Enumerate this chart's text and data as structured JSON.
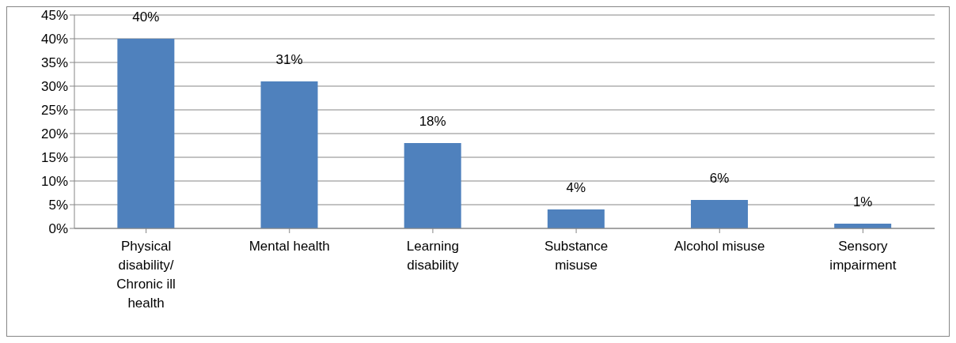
{
  "chart_data": {
    "type": "bar",
    "categories": [
      "Physical disability/ Chronic ill health",
      "Mental health",
      "Learning disability",
      "Substance misuse",
      "Alcohol misuse",
      "Sensory impairment"
    ],
    "values": [
      40,
      31,
      18,
      4,
      6,
      1
    ],
    "value_labels": [
      "40%",
      "31%",
      "18%",
      "4%",
      "6%",
      "1%"
    ],
    "color": "#4f81bd",
    "ylim": [
      0,
      45
    ],
    "yticks": [
      {
        "value": 0,
        "label": "0%"
      },
      {
        "value": 5,
        "label": "5%"
      },
      {
        "value": 10,
        "label": "10%"
      },
      {
        "value": 15,
        "label": "15%"
      },
      {
        "value": 20,
        "label": "20%"
      },
      {
        "value": 25,
        "label": "25%"
      },
      {
        "value": 30,
        "label": "30%"
      },
      {
        "value": 35,
        "label": "35%"
      },
      {
        "value": 40,
        "label": "40%"
      },
      {
        "value": 45,
        "label": "45%"
      }
    ],
    "grid": "y"
  }
}
